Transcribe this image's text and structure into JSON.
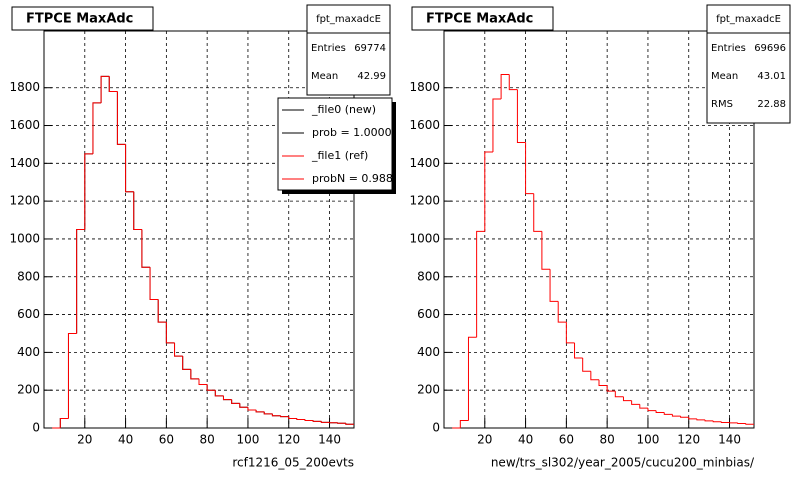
{
  "chart_data": [
    {
      "type": "histogram",
      "title": "FTPCE MaxAdc",
      "xlabel": "rcf1216_05_200evts",
      "bins": [
        4,
        8,
        12,
        16,
        20,
        24,
        28,
        32,
        36,
        40,
        44,
        48,
        52,
        56,
        60,
        64,
        68,
        72,
        76,
        80,
        84,
        88,
        92,
        96,
        100,
        104,
        108,
        112,
        116,
        120,
        124,
        128,
        132,
        136,
        140,
        144,
        148,
        152
      ],
      "series": [
        {
          "name": "_file0 (new)",
          "color": "#000000",
          "values": [
            0,
            50,
            500,
            1050,
            1450,
            1720,
            1860,
            1780,
            1500,
            1250,
            1050,
            850,
            680,
            560,
            450,
            380,
            310,
            260,
            230,
            200,
            170,
            150,
            130,
            110,
            95,
            85,
            75,
            65,
            60,
            50,
            45,
            40,
            35,
            30,
            28,
            25,
            20
          ]
        },
        {
          "name": "_file1 (ref)",
          "color": "#ff0000",
          "values": [
            0,
            50,
            500,
            1050,
            1450,
            1720,
            1860,
            1780,
            1500,
            1250,
            1050,
            850,
            680,
            560,
            450,
            380,
            310,
            260,
            230,
            200,
            170,
            150,
            130,
            110,
            95,
            85,
            75,
            65,
            60,
            50,
            45,
            40,
            35,
            30,
            28,
            25,
            20
          ]
        }
      ],
      "annotations": [
        {
          "text": "prob = 1.000000",
          "color": "#000000"
        },
        {
          "text": "probN = 0.98830",
          "color": "#ff0000"
        }
      ],
      "stats": {
        "title": "fpt_maxadcE",
        "rows": [
          [
            "Entries",
            69774
          ],
          [
            "Mean",
            42.99
          ]
        ]
      },
      "xlim": [
        0,
        152
      ],
      "xticks": [
        20,
        40,
        60,
        80,
        100,
        120,
        140
      ],
      "ylim": [
        0,
        2100
      ],
      "yticks": [
        0,
        200,
        400,
        600,
        800,
        1000,
        1200,
        1400,
        1600,
        1800
      ],
      "grid": true,
      "legend": "top right"
    },
    {
      "type": "histogram",
      "title": "FTPCE MaxAdc",
      "xlabel": "new/trs_sl302/year_2005/cucu200_minbias/",
      "bins": [
        4,
        8,
        12,
        16,
        20,
        24,
        28,
        32,
        36,
        40,
        44,
        48,
        52,
        56,
        60,
        64,
        68,
        72,
        76,
        80,
        84,
        88,
        92,
        96,
        100,
        104,
        108,
        112,
        116,
        120,
        124,
        128,
        132,
        136,
        140,
        144,
        148,
        152
      ],
      "series": [
        {
          "color": "#ff0000",
          "values": [
            0,
            40,
            480,
            1040,
            1460,
            1740,
            1870,
            1790,
            1510,
            1240,
            1040,
            840,
            670,
            560,
            450,
            370,
            300,
            255,
            225,
            195,
            165,
            145,
            125,
            105,
            92,
            82,
            72,
            63,
            57,
            48,
            43,
            38,
            33,
            29,
            27,
            24,
            20
          ]
        }
      ],
      "stats": {
        "title": "fpt_maxadcE",
        "rows": [
          [
            "Entries",
            69696
          ],
          [
            "Mean",
            43.01
          ],
          [
            "RMS",
            22.88
          ]
        ]
      },
      "xlim": [
        0,
        152
      ],
      "xticks": [
        20,
        40,
        60,
        80,
        100,
        120,
        140
      ],
      "ylim": [
        0,
        2100
      ],
      "yticks": [
        0,
        200,
        400,
        600,
        800,
        1000,
        1200,
        1400,
        1600,
        1800
      ],
      "grid": true
    }
  ]
}
